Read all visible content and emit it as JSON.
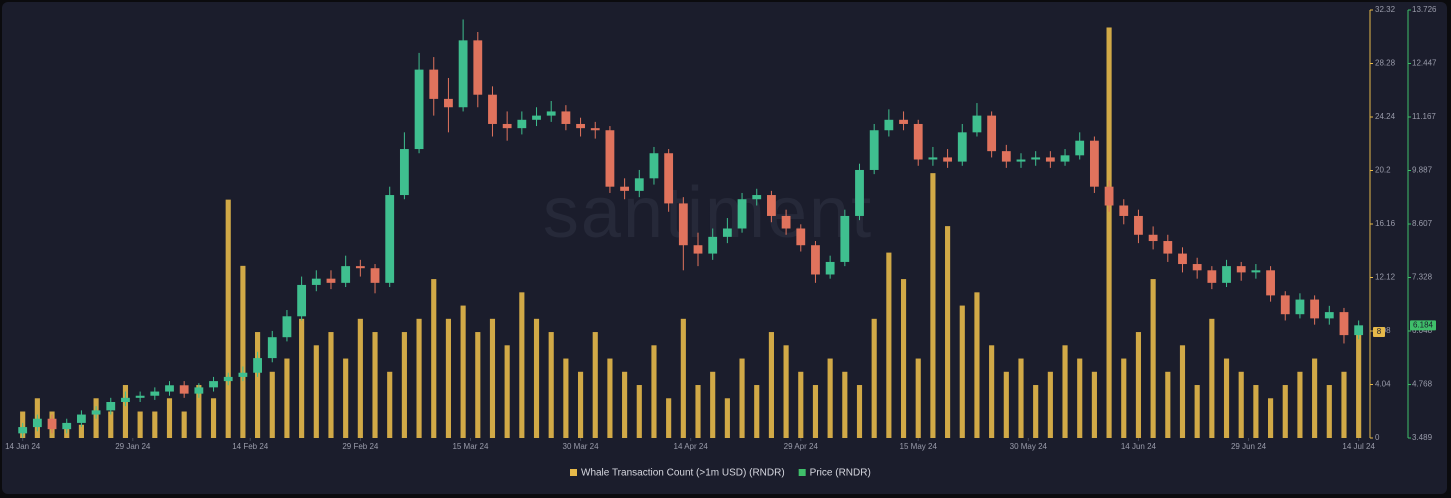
{
  "chart_data": {
    "type": "combo",
    "watermark": "santiment",
    "xlim": [
      "2024-01-12",
      "2024-07-15"
    ],
    "xticks": [
      {
        "value": "2024-01-14",
        "label": "14 Jan 24"
      },
      {
        "value": "2024-01-29",
        "label": "29 Jan 24"
      },
      {
        "value": "2024-02-14",
        "label": "14 Feb 24"
      },
      {
        "value": "2024-02-29",
        "label": "29 Feb 24"
      },
      {
        "value": "2024-03-15",
        "label": "15 Mar 24"
      },
      {
        "value": "2024-03-30",
        "label": "30 Mar 24"
      },
      {
        "value": "2024-04-14",
        "label": "14 Apr 24"
      },
      {
        "value": "2024-04-29",
        "label": "29 Apr 24"
      },
      {
        "value": "2024-05-15",
        "label": "15 May 24"
      },
      {
        "value": "2024-05-30",
        "label": "30 May 24"
      },
      {
        "value": "2024-06-14",
        "label": "14 Jun 24"
      },
      {
        "value": "2024-06-29",
        "label": "29 Jun 24"
      },
      {
        "value": "2024-07-14",
        "label": "14 Jul 24"
      }
    ],
    "ylim": [
      0,
      32.32
    ],
    "yticks": [
      0,
      4.04,
      8.08,
      12.12,
      16.16,
      20.2,
      24.24,
      28.28,
      32.32
    ],
    "y2lim": [
      3.489,
      13.726
    ],
    "y2ticks": [
      3.489,
      4.768,
      6.048,
      7.328,
      8.607,
      9.887,
      11.167,
      12.447,
      13.726
    ],
    "x": [
      "2024-01-14",
      "2024-01-16",
      "2024-01-18",
      "2024-01-20",
      "2024-01-22",
      "2024-01-24",
      "2024-01-26",
      "2024-01-28",
      "2024-01-30",
      "2024-02-01",
      "2024-02-03",
      "2024-02-05",
      "2024-02-07",
      "2024-02-09",
      "2024-02-11",
      "2024-02-13",
      "2024-02-15",
      "2024-02-17",
      "2024-02-19",
      "2024-02-21",
      "2024-02-23",
      "2024-02-25",
      "2024-02-27",
      "2024-02-29",
      "2024-03-02",
      "2024-03-04",
      "2024-03-06",
      "2024-03-08",
      "2024-03-10",
      "2024-03-12",
      "2024-03-14",
      "2024-03-16",
      "2024-03-18",
      "2024-03-20",
      "2024-03-22",
      "2024-03-24",
      "2024-03-26",
      "2024-03-28",
      "2024-03-30",
      "2024-04-01",
      "2024-04-03",
      "2024-04-05",
      "2024-04-07",
      "2024-04-09",
      "2024-04-11",
      "2024-04-13",
      "2024-04-15",
      "2024-04-17",
      "2024-04-19",
      "2024-04-21",
      "2024-04-23",
      "2024-04-25",
      "2024-04-27",
      "2024-04-29",
      "2024-05-01",
      "2024-05-03",
      "2024-05-05",
      "2024-05-07",
      "2024-05-09",
      "2024-05-11",
      "2024-05-13",
      "2024-05-15",
      "2024-05-17",
      "2024-05-19",
      "2024-05-21",
      "2024-05-23",
      "2024-05-25",
      "2024-05-27",
      "2024-05-29",
      "2024-05-31",
      "2024-06-02",
      "2024-06-04",
      "2024-06-06",
      "2024-06-08",
      "2024-06-10",
      "2024-06-12",
      "2024-06-14",
      "2024-06-16",
      "2024-06-18",
      "2024-06-20",
      "2024-06-22",
      "2024-06-24",
      "2024-06-26",
      "2024-06-28",
      "2024-06-30",
      "2024-07-02",
      "2024-07-04",
      "2024-07-06",
      "2024-07-08",
      "2024-07-10",
      "2024-07-12",
      "2024-07-14"
    ],
    "series": [
      {
        "name": "Whale Transaction Count (>1m USD) (RNDR)",
        "type": "bar",
        "axis": "y",
        "color": "#e6b94a",
        "values": [
          2,
          3,
          2,
          1,
          1,
          3,
          2,
          4,
          2,
          2,
          3,
          2,
          4,
          3,
          18,
          13,
          8,
          5,
          6,
          9,
          7,
          8,
          6,
          9,
          8,
          5,
          8,
          9,
          12,
          9,
          10,
          8,
          9,
          7,
          11,
          9,
          8,
          6,
          5,
          8,
          6,
          5,
          4,
          7,
          3,
          9,
          4,
          5,
          3,
          6,
          4,
          8,
          7,
          5,
          4,
          6,
          5,
          4,
          9,
          14,
          12,
          6,
          20,
          16,
          10,
          11,
          7,
          5,
          6,
          4,
          5,
          7,
          6,
          5,
          31,
          6,
          8,
          12,
          5,
          7,
          4,
          9,
          6,
          5,
          4,
          3,
          4,
          5,
          6,
          4,
          5,
          8
        ]
      },
      {
        "name": "Price (RNDR)",
        "type": "candlestick",
        "axis": "y2",
        "color": "#3fbf6a",
        "up_color": "#3fbf8f",
        "down_color": "#e0735d",
        "open": [
          3.6,
          3.75,
          3.95,
          3.7,
          3.85,
          4.05,
          4.15,
          4.35,
          4.45,
          4.5,
          4.6,
          4.75,
          4.55,
          4.7,
          4.85,
          4.95,
          5.05,
          5.4,
          5.9,
          6.4,
          7.15,
          7.3,
          7.2,
          7.6,
          7.55,
          7.2,
          9.3,
          10.4,
          12.3,
          11.6,
          11.4,
          13.0,
          11.7,
          11.0,
          10.9,
          11.1,
          11.2,
          11.3,
          11.0,
          10.9,
          10.85,
          9.5,
          9.4,
          9.7,
          10.3,
          9.1,
          8.1,
          7.9,
          8.3,
          8.5,
          9.2,
          9.3,
          8.8,
          8.5,
          8.1,
          7.4,
          7.7,
          8.8,
          9.9,
          10.85,
          11.1,
          11.0,
          10.15,
          10.2,
          10.1,
          10.8,
          11.2,
          10.35,
          10.1,
          10.15,
          10.2,
          10.1,
          10.25,
          10.6,
          9.5,
          9.05,
          8.8,
          8.35,
          8.2,
          7.9,
          7.65,
          7.5,
          7.2,
          7.6,
          7.45,
          7.5,
          6.9,
          6.45,
          6.8,
          6.35,
          6.5,
          5.95
        ],
        "high": [
          3.85,
          4.05,
          4.05,
          3.95,
          4.15,
          4.25,
          4.45,
          4.6,
          4.6,
          4.7,
          4.85,
          4.85,
          4.8,
          4.95,
          5.05,
          5.2,
          5.55,
          6.05,
          6.55,
          7.35,
          7.5,
          7.5,
          7.85,
          7.75,
          7.65,
          9.5,
          10.8,
          12.7,
          12.6,
          12.1,
          13.5,
          13.2,
          11.9,
          11.3,
          11.3,
          11.4,
          11.55,
          11.45,
          11.15,
          11.05,
          10.95,
          9.7,
          9.9,
          10.45,
          10.4,
          9.25,
          8.4,
          8.5,
          8.75,
          9.35,
          9.45,
          9.4,
          8.95,
          8.6,
          8.2,
          7.85,
          8.95,
          10.05,
          11.0,
          11.35,
          11.3,
          11.1,
          10.45,
          10.4,
          11.0,
          11.5,
          11.3,
          10.5,
          10.3,
          10.35,
          10.35,
          10.4,
          10.8,
          10.7,
          9.65,
          9.2,
          8.95,
          8.55,
          8.35,
          8.05,
          7.8,
          7.6,
          7.75,
          7.7,
          7.65,
          7.6,
          7.0,
          6.95,
          6.9,
          6.65,
          6.6,
          6.3
        ],
        "low": [
          3.5,
          3.65,
          3.6,
          3.6,
          3.75,
          3.95,
          4.05,
          4.25,
          4.35,
          4.4,
          4.5,
          4.45,
          4.45,
          4.6,
          4.75,
          4.85,
          4.95,
          5.3,
          5.8,
          6.3,
          7.0,
          7.05,
          7.1,
          7.35,
          6.95,
          7.1,
          9.2,
          10.3,
          11.2,
          10.8,
          11.3,
          11.4,
          10.7,
          10.6,
          10.75,
          10.95,
          11.05,
          10.85,
          10.7,
          10.65,
          9.35,
          9.2,
          9.25,
          9.55,
          8.9,
          7.5,
          7.6,
          7.75,
          8.15,
          8.4,
          9.05,
          8.65,
          8.35,
          7.95,
          7.2,
          7.3,
          7.6,
          8.7,
          9.8,
          10.7,
          10.85,
          10.0,
          10.0,
          9.95,
          10.0,
          10.7,
          10.2,
          9.95,
          9.95,
          10.0,
          9.95,
          10.0,
          10.15,
          9.35,
          8.9,
          8.6,
          8.15,
          8.0,
          7.7,
          7.45,
          7.3,
          7.05,
          7.1,
          7.25,
          7.3,
          6.75,
          6.3,
          6.35,
          6.2,
          6.2,
          5.75,
          5.85
        ],
        "close": [
          3.75,
          3.95,
          3.7,
          3.85,
          4.05,
          4.15,
          4.35,
          4.45,
          4.5,
          4.6,
          4.75,
          4.55,
          4.7,
          4.85,
          4.95,
          5.05,
          5.4,
          5.9,
          6.4,
          7.15,
          7.3,
          7.2,
          7.6,
          7.55,
          7.2,
          9.3,
          10.4,
          12.3,
          11.6,
          11.4,
          13.0,
          11.7,
          11.0,
          10.9,
          11.1,
          11.2,
          11.3,
          11.0,
          10.9,
          10.85,
          9.5,
          9.4,
          9.7,
          10.3,
          9.1,
          8.1,
          7.9,
          8.3,
          8.5,
          9.2,
          9.3,
          8.8,
          8.5,
          8.1,
          7.4,
          7.7,
          8.8,
          9.9,
          10.85,
          11.1,
          11.0,
          10.15,
          10.2,
          10.1,
          10.8,
          11.2,
          10.35,
          10.1,
          10.15,
          10.2,
          10.1,
          10.25,
          10.6,
          9.5,
          9.05,
          8.8,
          8.35,
          8.2,
          7.9,
          7.65,
          7.5,
          7.2,
          7.6,
          7.45,
          7.5,
          6.9,
          6.45,
          6.8,
          6.35,
          6.5,
          5.95,
          6.184
        ]
      }
    ]
  }
}
